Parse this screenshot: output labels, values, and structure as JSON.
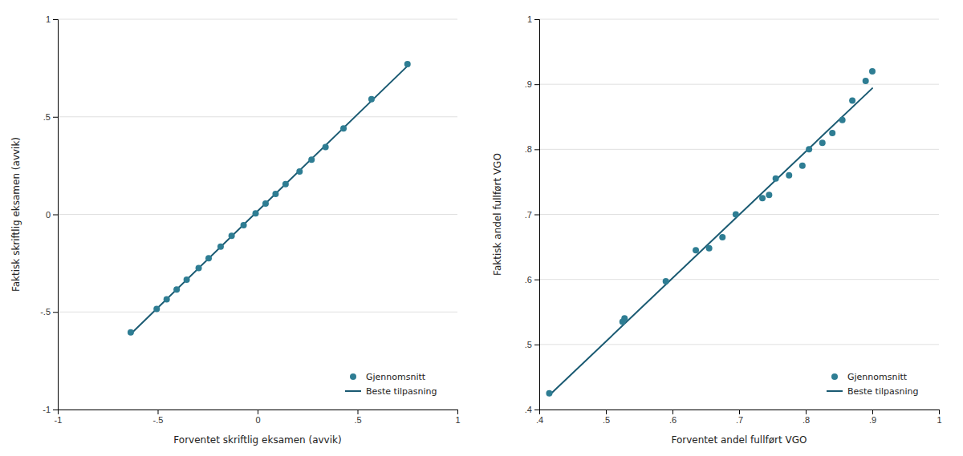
{
  "chart_data": [
    {
      "type": "scatter",
      "x_label": "Forventet skriftlig eksamen (avvik)",
      "y_label": "Faktisk skriftlig eksamen (avvik)",
      "xlim": [
        -1,
        1
      ],
      "ylim": [
        -1,
        1
      ],
      "xticks": [
        -1,
        {
          "value": -0.5,
          "label": "-.5"
        },
        0,
        {
          "value": 0.5,
          "label": ".5"
        },
        1
      ],
      "yticks": [
        -1,
        {
          "value": -0.5,
          "label": "-.5"
        },
        0,
        {
          "value": 0.5,
          "label": ".5"
        },
        1
      ],
      "grid": true,
      "legend": "lower right",
      "series": [
        {
          "name": "Gjennomsnitt",
          "type": "scatter",
          "marker": "circle",
          "color": "#2e7d93",
          "x": [
            -0.635,
            -0.505,
            -0.455,
            -0.405,
            -0.355,
            -0.295,
            -0.245,
            -0.185,
            -0.13,
            -0.07,
            -0.01,
            0.04,
            0.09,
            0.14,
            0.21,
            0.27,
            0.34,
            0.43,
            0.57,
            0.75
          ],
          "values": [
            -0.605,
            -0.485,
            -0.435,
            -0.385,
            -0.335,
            -0.275,
            -0.225,
            -0.165,
            -0.11,
            -0.055,
            0.005,
            0.055,
            0.105,
            0.155,
            0.22,
            0.28,
            0.345,
            0.44,
            0.59,
            0.77
          ]
        },
        {
          "name": "Beste tilpasning",
          "type": "line",
          "line_style": "solid",
          "color": "#1a5a72",
          "x": [
            -0.635,
            0.75
          ],
          "values": [
            -0.6128,
            0.7604
          ]
        }
      ]
    },
    {
      "type": "scatter",
      "x_label": "Forventet andel fullført VGO",
      "y_label": "Faktisk andel fullført VGO",
      "xlim": [
        0.4,
        1.0
      ],
      "ylim": [
        0.4,
        1.0
      ],
      "xticks": [
        {
          "value": 0.4,
          "label": ".4"
        },
        {
          "value": 0.5,
          "label": ".5"
        },
        {
          "value": 0.6,
          "label": ".6"
        },
        {
          "value": 0.7,
          "label": ".7"
        },
        {
          "value": 0.8,
          "label": ".8"
        },
        {
          "value": 0.9,
          "label": ".9"
        },
        1
      ],
      "yticks": [
        {
          "value": 0.4,
          "label": ".4"
        },
        {
          "value": 0.5,
          "label": ".5"
        },
        {
          "value": 0.6,
          "label": ".6"
        },
        {
          "value": 0.7,
          "label": ".7"
        },
        {
          "value": 0.8,
          "label": ".8"
        },
        {
          "value": 0.9,
          "label": ".9"
        },
        1
      ],
      "grid": true,
      "legend": "lower right",
      "series": [
        {
          "name": "Gjennomsnitt",
          "type": "scatter",
          "marker": "circle",
          "color": "#2e7d93",
          "x": [
            0.415,
            0.525,
            0.528,
            0.59,
            0.635,
            0.655,
            0.675,
            0.695,
            0.735,
            0.745,
            0.755,
            0.775,
            0.795,
            0.805,
            0.825,
            0.84,
            0.855,
            0.87,
            0.89,
            0.9
          ],
          "values": [
            0.425,
            0.535,
            0.54,
            0.597,
            0.645,
            0.648,
            0.665,
            0.7,
            0.725,
            0.73,
            0.755,
            0.76,
            0.775,
            0.8,
            0.81,
            0.825,
            0.845,
            0.875,
            0.905,
            0.92
          ]
        },
        {
          "name": "Beste tilpasning",
          "type": "line",
          "line_style": "solid",
          "color": "#1a5a72",
          "x": [
            0.415,
            0.9
          ],
          "values": [
            0.4219,
            0.8939
          ]
        }
      ]
    }
  ]
}
